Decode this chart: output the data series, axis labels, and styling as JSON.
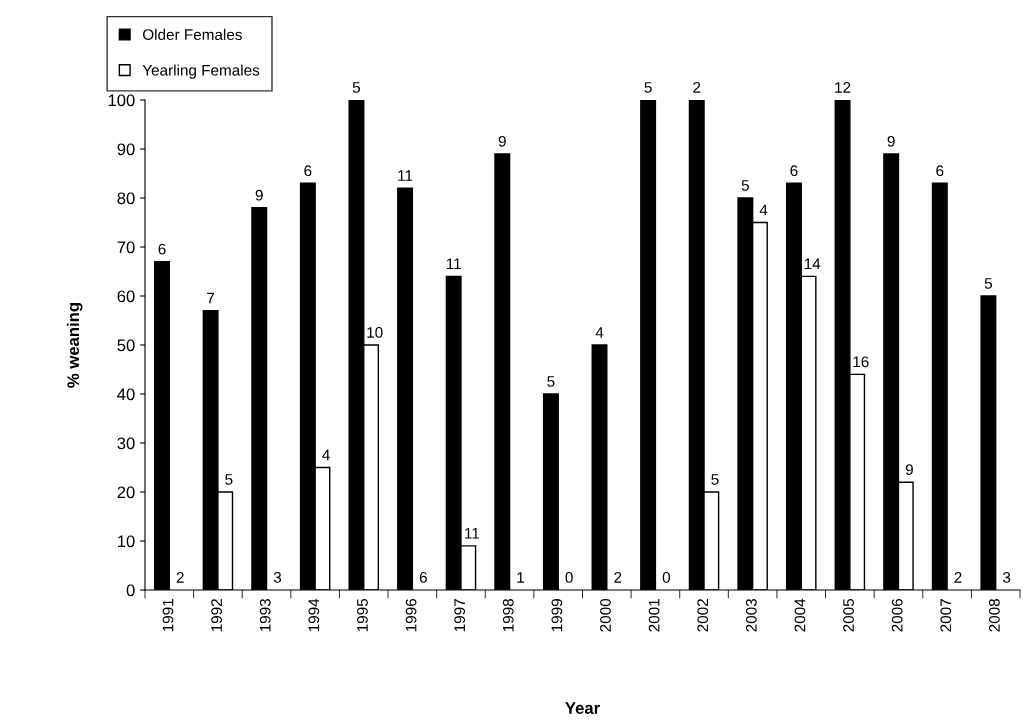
{
  "chart_data": {
    "type": "bar",
    "xlabel": "Year",
    "ylabel": "% weaning",
    "categories": [
      "1991",
      "1992",
      "1993",
      "1994",
      "1995",
      "1996",
      "1997",
      "1998",
      "1999",
      "2000",
      "2001",
      "2002",
      "2003",
      "2004",
      "2005",
      "2006",
      "2007",
      "2008"
    ],
    "series": [
      {
        "name": "Older Females",
        "color": "#000000",
        "values": [
          67,
          57,
          78,
          83,
          100,
          82,
          64,
          89,
          40,
          50,
          100,
          100,
          80,
          83,
          100,
          89,
          83,
          60
        ]
      },
      {
        "name": "Yearling Females",
        "color": "#ffffff",
        "values": [
          0,
          20,
          0,
          25,
          50,
          0,
          9,
          0,
          0,
          0,
          0,
          20,
          75,
          64,
          44,
          22,
          0,
          0
        ]
      }
    ],
    "annotations": [
      {
        "text": "6",
        "x": "1991",
        "y": 67
      },
      {
        "text": "2",
        "x": "1991",
        "y": 0
      },
      {
        "text": "7",
        "x": "1992",
        "y": 57
      },
      {
        "text": "5",
        "x": "1992",
        "y": 20
      },
      {
        "text": "9",
        "x": "1993",
        "y": 78
      },
      {
        "text": "3",
        "x": "1993",
        "y": 0
      },
      {
        "text": "6",
        "x": "1994",
        "y": 83
      },
      {
        "text": "4",
        "x": "1994",
        "y": 25
      },
      {
        "text": "5",
        "x": "1995",
        "y": 100
      },
      {
        "text": "10",
        "x": "1995",
        "y": 50
      },
      {
        "text": "11",
        "x": "1996",
        "y": 82
      },
      {
        "text": "6",
        "x": "1996",
        "y": 0
      },
      {
        "text": "11",
        "x": "1997",
        "y": 64
      },
      {
        "text": "11",
        "x": "1997",
        "y": 9
      },
      {
        "text": "9",
        "x": "1998",
        "y": 89
      },
      {
        "text": "1",
        "x": "1998",
        "y": 0
      },
      {
        "text": "5",
        "x": "1999",
        "y": 40
      },
      {
        "text": "0",
        "x": "1999",
        "y": 0
      },
      {
        "text": "4",
        "x": "2000",
        "y": 50
      },
      {
        "text": "2",
        "x": "2000",
        "y": 0
      },
      {
        "text": "5",
        "x": "2001",
        "y": 100
      },
      {
        "text": "0",
        "x": "2001",
        "y": 0
      },
      {
        "text": "2",
        "x": "2002",
        "y": 100
      },
      {
        "text": "5",
        "x": "2002",
        "y": 20
      },
      {
        "text": "5",
        "x": "2003",
        "y": 80
      },
      {
        "text": "4",
        "x": "2003",
        "y": 75
      },
      {
        "text": "6",
        "x": "2004",
        "y": 83
      },
      {
        "text": "14",
        "x": "2004",
        "y": 64
      },
      {
        "text": "12",
        "x": "2005",
        "y": 100
      },
      {
        "text": "16",
        "x": "2005",
        "y": 44
      },
      {
        "text": "9",
        "x": "2006",
        "y": 89
      },
      {
        "text": "9",
        "x": "2006",
        "y": 22
      },
      {
        "text": "6",
        "x": "2007",
        "y": 83
      },
      {
        "text": "2",
        "x": "2007",
        "y": 0
      },
      {
        "text": "5",
        "x": "2008",
        "y": 60
      },
      {
        "text": "3",
        "x": "2008",
        "y": 0
      }
    ],
    "ylim": [
      0,
      100
    ],
    "yticks": [
      0,
      10,
      20,
      30,
      40,
      50,
      60,
      70,
      80,
      90,
      100
    ],
    "grid": false,
    "legend": "top left"
  }
}
